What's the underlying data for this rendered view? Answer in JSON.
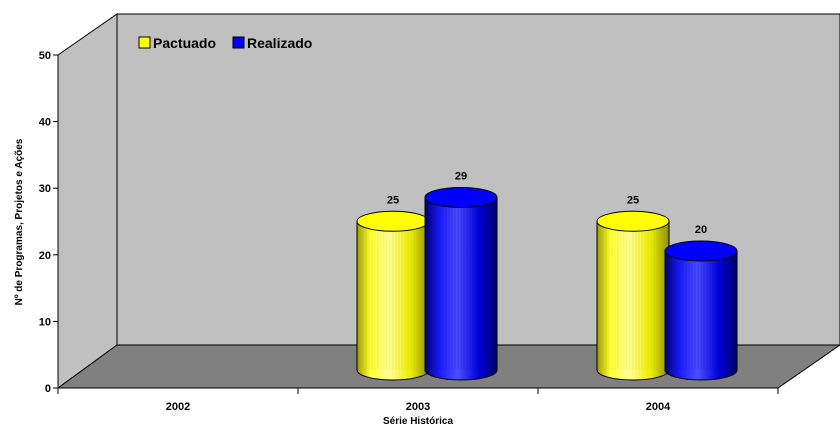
{
  "chart_data": {
    "type": "bar",
    "categories": [
      "2002",
      "2003",
      "2004"
    ],
    "series": [
      {
        "name": "Pactuado",
        "values": [
          null,
          25,
          25
        ]
      },
      {
        "name": "Realizado",
        "values": [
          null,
          29,
          20
        ]
      }
    ],
    "xlabel": "Série Histórica",
    "ylabel": "Nº de Programas, Projetos e Ações",
    "ylim": [
      0,
      50
    ],
    "yticks": [
      0,
      10,
      20,
      30,
      40,
      50
    ],
    "grid": false,
    "legend": "top-left",
    "style": "3d-cylinder"
  },
  "colors": {
    "Pactuado": "#ffff00",
    "Realizado": "#0000ff",
    "back_wall": "#c0c0c0",
    "floor": "#808080"
  }
}
